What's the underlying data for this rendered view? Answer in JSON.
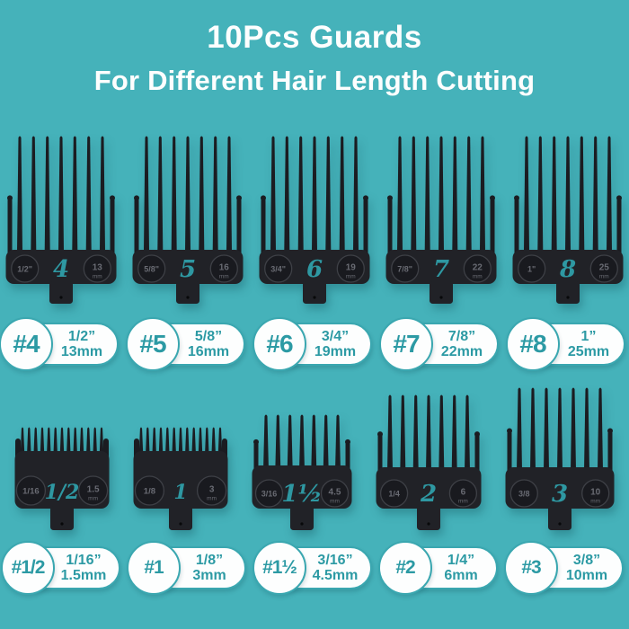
{
  "colors": {
    "background": "#45B2BA",
    "title": "#FDFEFE",
    "accent": "#2C9AA4",
    "pill_border": "#3AA7B0",
    "pill_bg": "#FDFEFE",
    "comb_body": "#212227",
    "comb_teeth": "#1B1C21",
    "comb_circle_fill": "#191A1F",
    "comb_circle_stroke": "#3E4046",
    "comb_mark_text": "#696B73",
    "comb_number": "#2E98A2"
  },
  "title": {
    "line1": "10Pcs Guards",
    "line2": "For Different Hair Length Cutting"
  },
  "guards": {
    "top_row": [
      {
        "label": "#4",
        "inch": "1/2”",
        "mm": "13mm",
        "comb": {
          "number": "4",
          "inch_mark": "1/2\"",
          "mm_value": "13",
          "mm_unit": "mm",
          "teeth": 7,
          "style": "long"
        }
      },
      {
        "label": "#5",
        "inch": "5/8”",
        "mm": "16mm",
        "comb": {
          "number": "5",
          "inch_mark": "5/8\"",
          "mm_value": "16",
          "mm_unit": "mm",
          "teeth": 7,
          "style": "long"
        }
      },
      {
        "label": "#6",
        "inch": "3/4”",
        "mm": "19mm",
        "comb": {
          "number": "6",
          "inch_mark": "3/4\"",
          "mm_value": "19",
          "mm_unit": "mm",
          "teeth": 7,
          "style": "long"
        }
      },
      {
        "label": "#7",
        "inch": "7/8”",
        "mm": "22mm",
        "comb": {
          "number": "7",
          "inch_mark": "7/8\"",
          "mm_value": "22",
          "mm_unit": "mm",
          "teeth": 7,
          "style": "long"
        }
      },
      {
        "label": "#8",
        "inch": "1”",
        "mm": "25mm",
        "comb": {
          "number": "8",
          "inch_mark": "1\"",
          "mm_value": "25",
          "mm_unit": "mm",
          "teeth": 7,
          "style": "long"
        }
      }
    ],
    "bottom_row": [
      {
        "label": "#1/2",
        "inch": "1/16”",
        "mm": "1.5mm",
        "comb": {
          "number": "1/2",
          "inch_mark": "1/16",
          "mm_value": "1.5",
          "mm_unit": "mm",
          "teeth": 13,
          "style": "fine"
        }
      },
      {
        "label": "#1",
        "inch": "1/8”",
        "mm": "3mm",
        "comb": {
          "number": "1",
          "inch_mark": "1/8",
          "mm_value": "3",
          "mm_unit": "mm",
          "teeth": 13,
          "style": "fine"
        }
      },
      {
        "label": "#1½",
        "inch": "3/16”",
        "mm": "4.5mm",
        "comb": {
          "number": "1½",
          "inch_mark": "3/16",
          "mm_value": "4.5",
          "mm_unit": "mm",
          "teeth": 7,
          "style": "long"
        }
      },
      {
        "label": "#2",
        "inch": "1/4”",
        "mm": "6mm",
        "comb": {
          "number": "2",
          "inch_mark": "1/4",
          "mm_value": "6",
          "mm_unit": "mm",
          "teeth": 7,
          "style": "long"
        }
      },
      {
        "label": "#3",
        "inch": "3/8”",
        "mm": "10mm",
        "comb": {
          "number": "3",
          "inch_mark": "3/8",
          "mm_value": "10",
          "mm_unit": "mm",
          "teeth": 7,
          "style": "long"
        }
      }
    ]
  }
}
